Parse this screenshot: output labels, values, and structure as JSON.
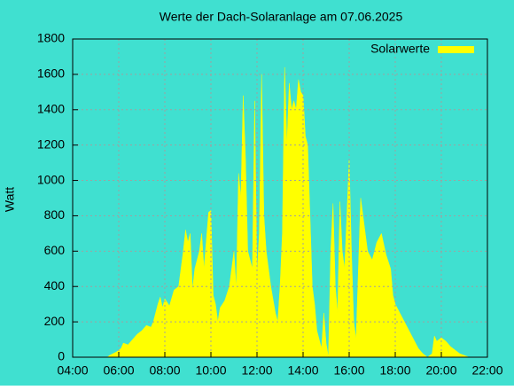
{
  "chart_data": {
    "type": "area",
    "title": "Werte der Dach-Solaranlage am 07.06.2025",
    "ylabel": "Watt",
    "x": [
      5.5,
      5.6,
      5.9,
      6.1,
      6.2,
      6.4,
      6.6,
      6.8,
      7.0,
      7.2,
      7.4,
      7.5,
      7.7,
      7.8,
      7.9,
      8.0,
      8.2,
      8.4,
      8.6,
      8.8,
      8.9,
      9.0,
      9.1,
      9.2,
      9.3,
      9.5,
      9.6,
      9.7,
      9.9,
      10.0,
      10.1,
      10.2,
      10.3,
      10.4,
      10.6,
      10.8,
      11.0,
      11.1,
      11.2,
      11.3,
      11.4,
      11.5,
      11.6,
      11.8,
      11.9,
      12.0,
      12.1,
      12.2,
      12.3,
      12.4,
      12.6,
      12.8,
      12.9,
      13.0,
      13.1,
      13.2,
      13.3,
      13.4,
      13.5,
      13.6,
      13.7,
      13.8,
      13.9,
      14.0,
      14.1,
      14.2,
      14.3,
      14.4,
      14.5,
      14.6,
      14.7,
      14.8,
      14.9,
      15.0,
      15.1,
      15.2,
      15.3,
      15.4,
      15.5,
      15.6,
      15.7,
      15.8,
      15.9,
      16.0,
      16.1,
      16.2,
      16.3,
      16.4,
      16.5,
      16.7,
      16.8,
      17.0,
      17.2,
      17.4,
      17.6,
      17.8,
      17.9,
      18.0,
      18.2,
      18.4,
      18.6,
      18.8,
      19.0,
      19.2,
      19.4,
      19.6,
      19.7,
      19.8,
      20.0,
      20.2,
      20.4,
      20.6,
      20.8,
      21.0,
      21.2
    ],
    "series": [
      {
        "name": "Solarwerte",
        "color": "#ffff00",
        "values": [
          0,
          10,
          30,
          50,
          80,
          70,
          100,
          130,
          150,
          180,
          170,
          200,
          300,
          340,
          280,
          330,
          290,
          380,
          400,
          600,
          720,
          650,
          700,
          380,
          500,
          600,
          700,
          500,
          820,
          830,
          350,
          300,
          200,
          280,
          320,
          400,
          600,
          380,
          1040,
          900,
          1480,
          1130,
          600,
          500,
          1450,
          460,
          700,
          1600,
          800,
          600,
          400,
          250,
          200,
          400,
          700,
          1640,
          1200,
          1550,
          1400,
          1450,
          1400,
          1570,
          1500,
          1480,
          1250,
          1200,
          800,
          400,
          300,
          150,
          100,
          50,
          250,
          80,
          0,
          600,
          870,
          400,
          250,
          880,
          600,
          500,
          800,
          1120,
          600,
          200,
          100,
          500,
          900,
          700,
          600,
          550,
          650,
          700,
          580,
          500,
          350,
          300,
          250,
          200,
          150,
          100,
          50,
          20,
          0,
          20,
          120,
          90,
          110,
          90,
          60,
          40,
          20,
          10,
          0
        ]
      }
    ],
    "xlim": [
      4,
      22
    ],
    "xticks": [
      {
        "value": 4,
        "label": "04:00"
      },
      {
        "value": 6,
        "label": "06:00"
      },
      {
        "value": 8,
        "label": "08:00"
      },
      {
        "value": 10,
        "label": "10:00"
      },
      {
        "value": 12,
        "label": "12:00"
      },
      {
        "value": 14,
        "label": "14:00"
      },
      {
        "value": 16,
        "label": "16:00"
      },
      {
        "value": 18,
        "label": "18:00"
      },
      {
        "value": 20,
        "label": "20:00"
      },
      {
        "value": 22,
        "label": "22:00"
      }
    ],
    "ylim": [
      0,
      1800
    ],
    "yticks": [
      0,
      200,
      400,
      600,
      800,
      1000,
      1200,
      1400,
      1600,
      1800
    ],
    "grid": true,
    "legend": "top right",
    "background": "#40e0d0"
  }
}
